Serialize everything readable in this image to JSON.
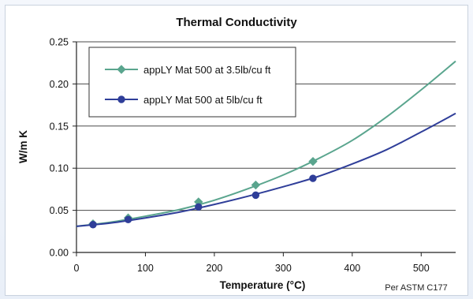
{
  "chart_data": {
    "type": "line",
    "title": "Thermal Conductivity",
    "xlabel": "Temperature (°C)",
    "ylabel": "W/m K",
    "note": "Per ASTM C177",
    "xlim": [
      0,
      550
    ],
    "ylim": [
      0,
      0.25
    ],
    "xticks": [
      "0",
      "100",
      "200",
      "300",
      "400",
      "500"
    ],
    "yticks": [
      "0.00",
      "0.05",
      "0.10",
      "0.15",
      "0.20",
      "0.25"
    ],
    "grid": "horizontal",
    "legend_position": "top-left",
    "series": [
      {
        "name": "appLY Mat 500 at 3.5lb/cu ft",
        "color": "#5aa58e",
        "marker": "diamond",
        "markers": [
          [
            24,
            0.034
          ],
          [
            75,
            0.041
          ],
          [
            177,
            0.06
          ],
          [
            260,
            0.08
          ],
          [
            343,
            0.108
          ]
        ],
        "curve": [
          [
            0,
            0.031
          ],
          [
            50,
            0.036
          ],
          [
            100,
            0.043
          ],
          [
            150,
            0.051
          ],
          [
            200,
            0.062
          ],
          [
            250,
            0.076
          ],
          [
            300,
            0.092
          ],
          [
            350,
            0.111
          ],
          [
            400,
            0.133
          ],
          [
            450,
            0.161
          ],
          [
            500,
            0.193
          ],
          [
            550,
            0.227
          ]
        ]
      },
      {
        "name": "appLY Mat 500 at 5lb/cu ft",
        "color": "#2f3e99",
        "marker": "circle",
        "markers": [
          [
            24,
            0.033
          ],
          [
            75,
            0.039
          ],
          [
            177,
            0.054
          ],
          [
            260,
            0.068
          ],
          [
            343,
            0.088
          ]
        ],
        "curve": [
          [
            0,
            0.031
          ],
          [
            50,
            0.035
          ],
          [
            100,
            0.041
          ],
          [
            150,
            0.048
          ],
          [
            200,
            0.057
          ],
          [
            250,
            0.067
          ],
          [
            300,
            0.078
          ],
          [
            350,
            0.09
          ],
          [
            400,
            0.105
          ],
          [
            450,
            0.122
          ],
          [
            500,
            0.143
          ],
          [
            550,
            0.165
          ]
        ]
      }
    ]
  }
}
